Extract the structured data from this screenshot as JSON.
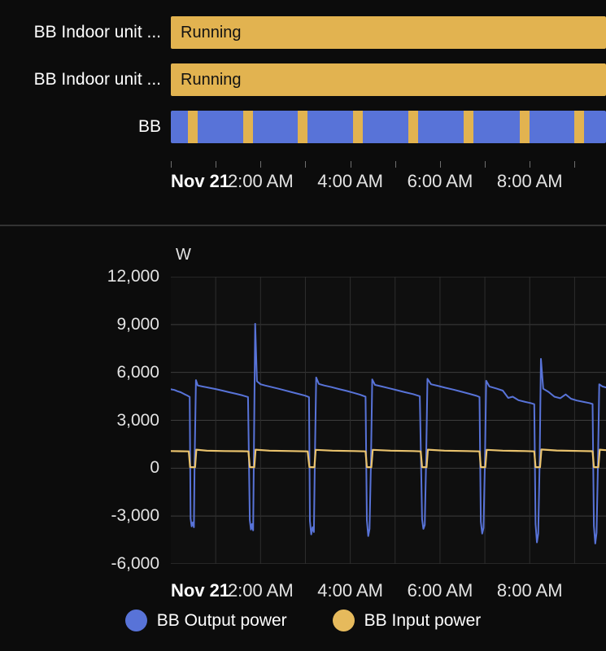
{
  "colors": {
    "blue": "#5873d8",
    "amber": "#e2b350",
    "amber_line": "#eac36d",
    "state_text": "#121212"
  },
  "timeline": {
    "rows": [
      {
        "label": "BB Indoor unit ...",
        "state": "Running"
      },
      {
        "label": "BB Indoor unit ...",
        "state": "Running"
      },
      {
        "label": "BB",
        "stripes_pct": [
          5.0,
          17.8,
          30.3,
          43.0,
          55.7,
          68.4,
          81.3,
          93.9
        ],
        "stripe_width_pct": 2.2
      }
    ],
    "axis": {
      "hours_total": 9.7,
      "tick_hours": [
        0,
        1,
        2,
        3,
        4,
        5,
        6,
        7,
        8,
        9
      ],
      "labels": [
        {
          "text": "Nov 21",
          "hour": 0,
          "bold": true
        },
        {
          "text": "2:00 AM",
          "hour": 2
        },
        {
          "text": "4:00 AM",
          "hour": 4
        },
        {
          "text": "6:00 AM",
          "hour": 6
        },
        {
          "text": "8:00 AM",
          "hour": 8
        }
      ]
    }
  },
  "chart_data": {
    "type": "line",
    "unit": "W",
    "x_unit": "hours after midnight Nov 21",
    "x_range": [
      0,
      9.7
    ],
    "ylim": [
      -6000,
      12000
    ],
    "grid": true,
    "legend_position": "bottom",
    "yticks": [
      {
        "value": 12000,
        "label": "12,000"
      },
      {
        "value": 9000,
        "label": "9,000"
      },
      {
        "value": 6000,
        "label": "6,000"
      },
      {
        "value": 3000,
        "label": "3,000"
      },
      {
        "value": 0,
        "label": "0"
      },
      {
        "value": -3000,
        "label": "-3,000"
      },
      {
        "value": -6000,
        "label": "-6,000"
      }
    ],
    "xticks": [
      {
        "hour": 0,
        "label": "Nov 21",
        "bold": true
      },
      {
        "hour": 2,
        "label": "2:00 AM"
      },
      {
        "hour": 4,
        "label": "4:00 AM"
      },
      {
        "hour": 6,
        "label": "6:00 AM"
      },
      {
        "hour": 8,
        "label": "8:00 AM"
      }
    ],
    "grid_hours": [
      1,
      2,
      3,
      4,
      5,
      6,
      7,
      8,
      9
    ],
    "series": [
      {
        "name": "BB Output power",
        "color": "#5873d8",
        "points": [
          [
            0.0,
            4950
          ],
          [
            0.08,
            4900
          ],
          [
            0.15,
            4820
          ],
          [
            0.22,
            4760
          ],
          [
            0.3,
            4640
          ],
          [
            0.36,
            4560
          ],
          [
            0.42,
            4470
          ],
          [
            0.44,
            -3150
          ],
          [
            0.465,
            -3650
          ],
          [
            0.49,
            -3400
          ],
          [
            0.515,
            -3700
          ],
          [
            0.53,
            250
          ],
          [
            0.56,
            5520
          ],
          [
            0.6,
            5180
          ],
          [
            0.7,
            5120
          ],
          [
            0.85,
            5040
          ],
          [
            1.0,
            4960
          ],
          [
            1.15,
            4860
          ],
          [
            1.3,
            4760
          ],
          [
            1.45,
            4660
          ],
          [
            1.6,
            4560
          ],
          [
            1.72,
            4460
          ],
          [
            1.76,
            -3250
          ],
          [
            1.785,
            -3850
          ],
          [
            1.81,
            -3500
          ],
          [
            1.835,
            -3900
          ],
          [
            1.85,
            300
          ],
          [
            1.88,
            9050
          ],
          [
            1.92,
            5450
          ],
          [
            2.0,
            5260
          ],
          [
            2.1,
            5180
          ],
          [
            2.25,
            5080
          ],
          [
            2.4,
            4980
          ],
          [
            2.55,
            4870
          ],
          [
            2.7,
            4760
          ],
          [
            2.85,
            4650
          ],
          [
            3.0,
            4540
          ],
          [
            3.08,
            4450
          ],
          [
            3.1,
            -3300
          ],
          [
            3.13,
            -4150
          ],
          [
            3.16,
            -3700
          ],
          [
            3.19,
            -4000
          ],
          [
            3.21,
            250
          ],
          [
            3.24,
            5680
          ],
          [
            3.3,
            5280
          ],
          [
            3.42,
            5180
          ],
          [
            3.58,
            5080
          ],
          [
            3.75,
            4960
          ],
          [
            3.92,
            4840
          ],
          [
            4.08,
            4720
          ],
          [
            4.22,
            4600
          ],
          [
            4.34,
            4480
          ],
          [
            4.37,
            -3250
          ],
          [
            4.4,
            -4250
          ],
          [
            4.43,
            -3800
          ],
          [
            4.46,
            250
          ],
          [
            4.49,
            5560
          ],
          [
            4.55,
            5220
          ],
          [
            4.7,
            5120
          ],
          [
            4.88,
            5000
          ],
          [
            5.05,
            4880
          ],
          [
            5.22,
            4760
          ],
          [
            5.4,
            4640
          ],
          [
            5.55,
            4510
          ],
          [
            5.6,
            -3200
          ],
          [
            5.63,
            -3800
          ],
          [
            5.66,
            -3550
          ],
          [
            5.69,
            300
          ],
          [
            5.72,
            5600
          ],
          [
            5.8,
            5260
          ],
          [
            5.95,
            5160
          ],
          [
            6.12,
            5040
          ],
          [
            6.3,
            4920
          ],
          [
            6.48,
            4790
          ],
          [
            6.65,
            4660
          ],
          [
            6.82,
            4530
          ],
          [
            6.88,
            4460
          ],
          [
            6.91,
            -3350
          ],
          [
            6.94,
            -4100
          ],
          [
            6.97,
            -3750
          ],
          [
            7.0,
            250
          ],
          [
            7.03,
            5480
          ],
          [
            7.1,
            5120
          ],
          [
            7.25,
            5000
          ],
          [
            7.4,
            4860
          ],
          [
            7.52,
            4400
          ],
          [
            7.62,
            4480
          ],
          [
            7.75,
            4260
          ],
          [
            7.9,
            4150
          ],
          [
            8.02,
            4080
          ],
          [
            8.1,
            4010
          ],
          [
            8.13,
            -3500
          ],
          [
            8.16,
            -4650
          ],
          [
            8.19,
            -4100
          ],
          [
            8.22,
            300
          ],
          [
            8.25,
            6850
          ],
          [
            8.3,
            4980
          ],
          [
            8.42,
            4780
          ],
          [
            8.55,
            4480
          ],
          [
            8.68,
            4380
          ],
          [
            8.8,
            4620
          ],
          [
            8.92,
            4350
          ],
          [
            9.05,
            4240
          ],
          [
            9.2,
            4150
          ],
          [
            9.33,
            4080
          ],
          [
            9.4,
            4020
          ],
          [
            9.43,
            -3600
          ],
          [
            9.46,
            -4720
          ],
          [
            9.49,
            -4050
          ],
          [
            9.52,
            250
          ],
          [
            9.55,
            5260
          ],
          [
            9.62,
            5120
          ],
          [
            9.7,
            5060
          ]
        ]
      },
      {
        "name": "BB Input power",
        "color": "#eac36d",
        "points": [
          [
            0.0,
            1070
          ],
          [
            0.2,
            1060
          ],
          [
            0.4,
            1050
          ],
          [
            0.43,
            70
          ],
          [
            0.54,
            60
          ],
          [
            0.57,
            1160
          ],
          [
            0.8,
            1100
          ],
          [
            1.2,
            1070
          ],
          [
            1.6,
            1060
          ],
          [
            1.73,
            1050
          ],
          [
            1.76,
            70
          ],
          [
            1.86,
            60
          ],
          [
            1.89,
            1160
          ],
          [
            2.2,
            1100
          ],
          [
            2.7,
            1070
          ],
          [
            3.05,
            1050
          ],
          [
            3.09,
            70
          ],
          [
            3.2,
            60
          ],
          [
            3.23,
            1150
          ],
          [
            3.6,
            1100
          ],
          [
            4.1,
            1070
          ],
          [
            4.34,
            1050
          ],
          [
            4.37,
            70
          ],
          [
            4.47,
            60
          ],
          [
            4.5,
            1150
          ],
          [
            4.9,
            1100
          ],
          [
            5.4,
            1070
          ],
          [
            5.57,
            1050
          ],
          [
            5.6,
            70
          ],
          [
            5.7,
            60
          ],
          [
            5.73,
            1160
          ],
          [
            6.1,
            1100
          ],
          [
            6.6,
            1070
          ],
          [
            6.88,
            1050
          ],
          [
            6.91,
            70
          ],
          [
            7.01,
            60
          ],
          [
            7.04,
            1150
          ],
          [
            7.4,
            1100
          ],
          [
            7.9,
            1070
          ],
          [
            8.1,
            1050
          ],
          [
            8.13,
            70
          ],
          [
            8.23,
            60
          ],
          [
            8.26,
            1170
          ],
          [
            8.6,
            1110
          ],
          [
            9.1,
            1080
          ],
          [
            9.4,
            1060
          ],
          [
            9.43,
            70
          ],
          [
            9.53,
            60
          ],
          [
            9.56,
            1160
          ],
          [
            9.7,
            1130
          ]
        ]
      }
    ]
  },
  "legend": {
    "items": [
      {
        "label": "BB Output power",
        "color": "#5873d8"
      },
      {
        "label": "BB Input power",
        "color": "#e6ba5c"
      }
    ]
  }
}
